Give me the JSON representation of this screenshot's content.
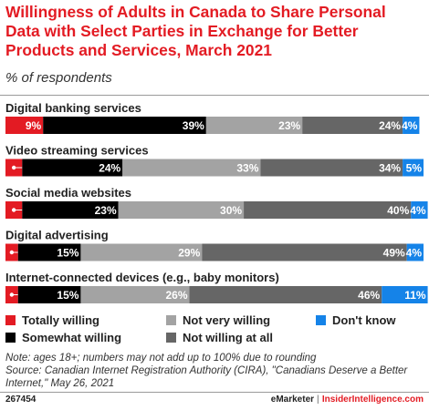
{
  "header": {
    "title": "Willingness of Adults in Canada to Share Personal Data with Select Parties in Exchange for Better Products and Services, March 2021",
    "subtitle": "% of respondents"
  },
  "legend": [
    {
      "name": "Totally willing",
      "color": "#e31b23"
    },
    {
      "name": "Somewhat willing",
      "color": "#000000"
    },
    {
      "name": "Not very willing",
      "color": "#a3a3a3"
    },
    {
      "name": "Not willing at all",
      "color": "#666666"
    },
    {
      "name": "Don't know",
      "color": "#1583e8"
    }
  ],
  "chart_data": {
    "type": "bar",
    "orientation": "horizontal",
    "stacked": true,
    "xlim": [
      0,
      100
    ],
    "categories": [
      "Digital banking services",
      "Video streaming services",
      "Social media websites",
      "Digital advertising",
      "Internet-connected devices (e.g., baby monitors)"
    ],
    "series": [
      {
        "name": "Totally willing",
        "color": "#e31b23",
        "values": [
          9,
          4,
          4,
          3,
          3
        ]
      },
      {
        "name": "Somewhat willing",
        "color": "#000000",
        "values": [
          39,
          24,
          23,
          15,
          15
        ]
      },
      {
        "name": "Not very willing",
        "color": "#a3a3a3",
        "values": [
          23,
          33,
          30,
          29,
          26
        ]
      },
      {
        "name": "Not willing at all",
        "color": "#666666",
        "values": [
          24,
          34,
          40,
          49,
          46
        ]
      },
      {
        "name": "Don't know",
        "color": "#1583e8",
        "values": [
          4,
          5,
          4,
          4,
          11
        ]
      }
    ],
    "labels": [
      [
        "9%",
        "39%",
        "23%",
        "24%",
        "4%"
      ],
      [
        "4%",
        "24%",
        "33%",
        "34%",
        "5%"
      ],
      [
        "4%",
        "23%",
        "30%",
        "40%",
        "4%"
      ],
      [
        "3%",
        "15%",
        "29%",
        "49%",
        "4%"
      ],
      [
        "3%",
        "15%",
        "26%",
        "46%",
        "11%"
      ]
    ],
    "grid": false
  },
  "footer": {
    "note": "Note: ages 18+; numbers may not add up to 100% due to rounding",
    "source": "Source: Canadian Internet Registration Authority (CIRA), \"Canadians Deserve a Better Internet,\" May 26, 2021",
    "id": "267454",
    "brand1": "eMarketer",
    "separator": "|",
    "brand2": "InsiderIntelligence.com"
  }
}
